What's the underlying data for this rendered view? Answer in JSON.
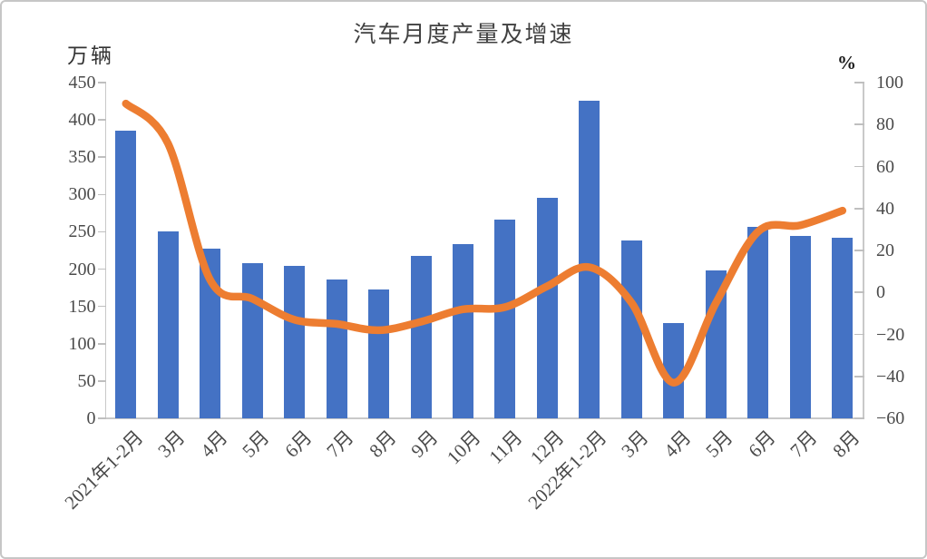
{
  "window": {
    "background": "#ffffff",
    "border_color": "#c6c6c6"
  },
  "chart_data": {
    "type": "bar+line",
    "title": "汽车月度产量及增速",
    "grid": false,
    "legend": "none",
    "categories": [
      "2021年1-2月",
      "3月",
      "4月",
      "5月",
      "6月",
      "7月",
      "8月",
      "9月",
      "10月",
      "11月",
      "12月",
      "2022年1-2月",
      "3月",
      "4月",
      "5月",
      "6月",
      "7月",
      "8月"
    ],
    "series": [
      {
        "name": "产量",
        "type": "bar",
        "axis": "left",
        "unit": "万辆",
        "color": "#4472C4",
        "values": [
          385,
          251,
          227,
          208,
          204,
          186,
          173,
          218,
          233,
          266,
          295,
          426,
          238,
          128,
          198,
          257,
          244,
          242
        ]
      },
      {
        "name": "增速",
        "type": "line",
        "axis": "right",
        "unit": "%",
        "color": "#ED7D31",
        "values": [
          90,
          71,
          6,
          -3,
          -13,
          -15,
          -18,
          -14,
          -8,
          -7,
          3,
          12,
          -5,
          -43,
          -5,
          29,
          32,
          39
        ]
      }
    ],
    "left_axis": {
      "label": "万辆",
      "min": 0,
      "max": 450,
      "step": 50,
      "ticks": [
        450,
        400,
        350,
        300,
        250,
        200,
        150,
        100,
        50,
        0
      ]
    },
    "right_axis": {
      "label": "%",
      "min": -60,
      "max": 100,
      "step": 20,
      "ticks": [
        100,
        80,
        60,
        40,
        20,
        0,
        -20,
        -40,
        -60
      ]
    }
  }
}
